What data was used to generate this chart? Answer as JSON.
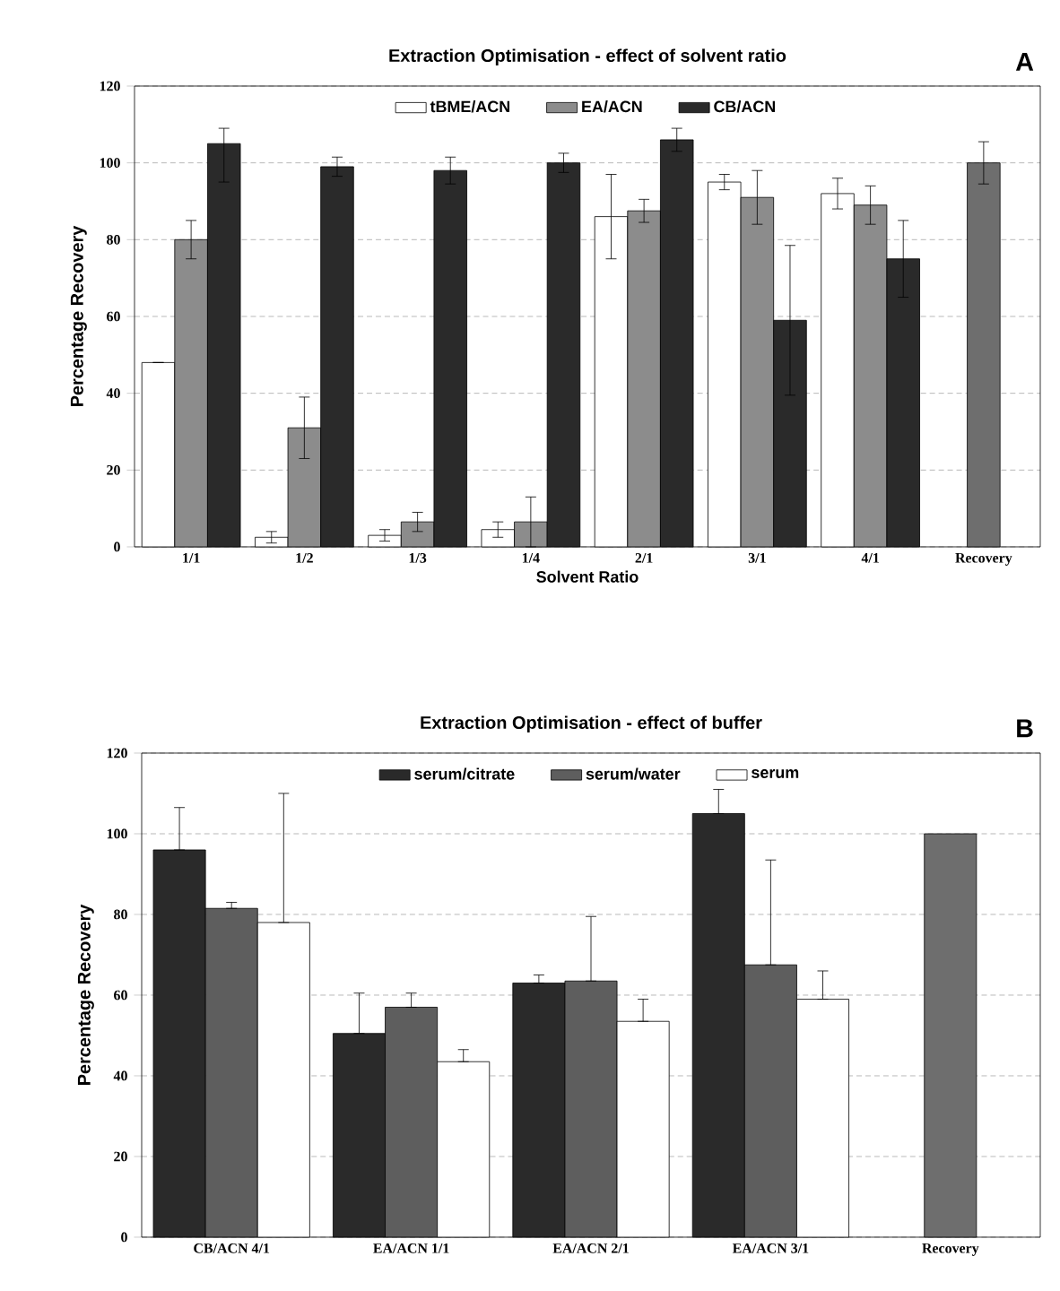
{
  "chart_data": [
    {
      "type": "bar",
      "title": "Extraction Optimisation - effect of solvent ratio",
      "xlabel": "Solvent Ratio",
      "ylabel": "Percentage Recovery",
      "annotations": [
        "A"
      ],
      "categories": [
        "1/1",
        "1/2",
        "1/3",
        "1/4",
        "2/1",
        "3/1",
        "4/1",
        "Recovery"
      ],
      "series": [
        {
          "name": "tBME/ACN",
          "color": "#ffffff",
          "values": [
            48,
            2.5,
            3,
            4.5,
            86,
            95,
            92,
            null
          ],
          "errors": [
            null,
            1.5,
            1.5,
            2,
            11,
            2,
            4,
            null
          ]
        },
        {
          "name": "EA/ACN",
          "color": "#8c8c8c",
          "values": [
            80,
            31,
            6.5,
            6.5,
            87.5,
            91,
            89,
            null
          ],
          "errors": [
            5,
            8,
            2.5,
            6.5,
            3,
            7,
            5,
            null
          ]
        },
        {
          "name": "CB/ACN",
          "color": "#2a2a2a",
          "values": [
            105,
            99,
            98,
            100,
            106,
            59,
            75,
            null
          ],
          "errors": [
            [
              95,
              109
            ],
            2.5,
            3.5,
            2.5,
            3,
            19.5,
            10,
            null
          ]
        },
        {
          "color": "#6e6e6e",
          "values": [
            null,
            null,
            null,
            null,
            null,
            null,
            null,
            100
          ],
          "errors": [
            null,
            null,
            null,
            null,
            null,
            null,
            null,
            5.5
          ]
        }
      ],
      "ylim": [
        0,
        120
      ],
      "yticks": [
        0,
        20,
        40,
        60,
        80,
        100,
        120
      ],
      "grid": "y",
      "legend": "top"
    },
    {
      "type": "bar",
      "title": "Extraction Optimisation - effect of buffer",
      "ylabel": "Percentage Recovery",
      "annotations": [
        "B"
      ],
      "categories": [
        "CB/ACN 4/1",
        "EA/ACN 1/1",
        "EA/ACN 2/1",
        "EA/ACN 3/1",
        "Recovery"
      ],
      "series": [
        {
          "name": "serum/citrate",
          "color": "#2a2a2a",
          "values": [
            96,
            50.5,
            63,
            105,
            null
          ],
          "errors": [
            [
              96,
              106.5
            ],
            [
              50.5,
              60.5
            ],
            [
              63,
              65
            ],
            [
              105,
              111
            ],
            null
          ]
        },
        {
          "name": "serum/water",
          "color": "#5e5e5e",
          "values": [
            81.5,
            57,
            63.5,
            67.5,
            null
          ],
          "errors": [
            [
              81.5,
              83
            ],
            [
              57,
              60.5
            ],
            [
              63.5,
              79.5
            ],
            [
              67.5,
              93.5
            ],
            null
          ]
        },
        {
          "name": "serum",
          "color": "#ffffff",
          "values": [
            78,
            43.5,
            53.5,
            59,
            null
          ],
          "errors": [
            [
              78,
              110
            ],
            [
              43.5,
              46.5
            ],
            [
              53.5,
              59
            ],
            [
              59,
              66
            ],
            null
          ]
        },
        {
          "color": "#6e6e6e",
          "values": [
            null,
            null,
            null,
            null,
            100
          ]
        }
      ],
      "ylim": [
        0,
        120
      ],
      "yticks": [
        0,
        20,
        40,
        60,
        80,
        100,
        120
      ],
      "grid": "y",
      "legend": "top"
    }
  ]
}
